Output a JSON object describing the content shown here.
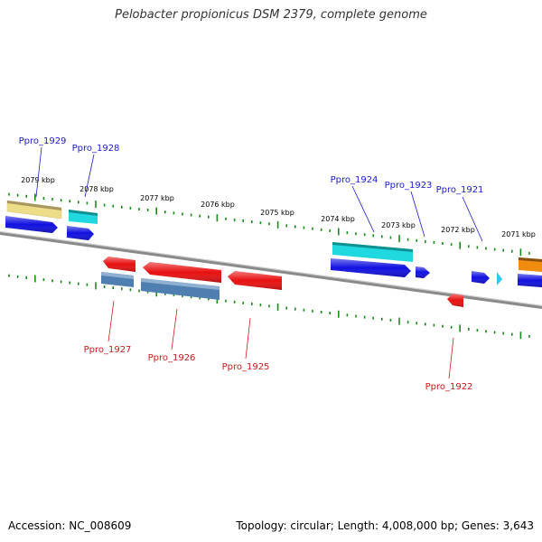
{
  "title": "Pelobacter propionicus DSM 2379, complete genome",
  "footer": {
    "accession": "Accession: NC_008609",
    "topology": "Topology: circular; Length: 4,008,000 bp; Genes: 3,643"
  },
  "colors": {
    "backbone": "#808080",
    "tick": "#1a8a1a",
    "forward_label": "#1a1acc",
    "reverse_label": "#cc1a1a",
    "blue": "#1010e0",
    "cyan": "#20d8e0",
    "red": "#e81010",
    "steel": "#4f7fb0",
    "khaki": "#f0e090",
    "orange": "#f08c10",
    "lightblue": "#30c8f0"
  },
  "scale_labels": [
    "2079 kbp",
    "2078 kbp",
    "2077 kbp",
    "2076 kbp",
    "2075 kbp",
    "2074 kbp",
    "2073 kbp",
    "2072 kbp",
    "2071 kbp"
  ],
  "genes": [
    {
      "id": "Ppro_1929",
      "strand": "forward",
      "color": "khaki",
      "label": "Ppro_1929"
    },
    {
      "id": "Ppro_1929_cds",
      "strand": "forward",
      "color": "blue",
      "label": ""
    },
    {
      "id": "Ppro_1928",
      "strand": "forward",
      "color": "cyan",
      "label": "Ppro_1928"
    },
    {
      "id": "Ppro_1928_cds",
      "strand": "forward",
      "color": "blue",
      "label": ""
    },
    {
      "id": "Ppro_1927",
      "strand": "reverse",
      "color": "red",
      "label": "Ppro_1927"
    },
    {
      "id": "Ppro_1927_cds",
      "strand": "reverse",
      "color": "steel",
      "label": ""
    },
    {
      "id": "Ppro_1926",
      "strand": "reverse",
      "color": "red",
      "label": "Ppro_1926"
    },
    {
      "id": "Ppro_1926_cds",
      "strand": "reverse",
      "color": "steel",
      "label": ""
    },
    {
      "id": "Ppro_1925",
      "strand": "reverse",
      "color": "red",
      "label": "Ppro_1925"
    },
    {
      "id": "Ppro_1924",
      "strand": "forward",
      "color": "cyan",
      "label": "Ppro_1924"
    },
    {
      "id": "Ppro_1924_cds",
      "strand": "forward",
      "color": "blue",
      "label": ""
    },
    {
      "id": "Ppro_1923",
      "strand": "forward",
      "color": "blue",
      "label": "Ppro_1923"
    },
    {
      "id": "Ppro_1922",
      "strand": "reverse",
      "color": "red",
      "label": "Ppro_1922"
    },
    {
      "id": "Ppro_1921",
      "strand": "forward",
      "color": "blue",
      "label": "Ppro_1921"
    },
    {
      "id": "Ppro_1921_tri",
      "strand": "forward",
      "color": "lightblue",
      "label": ""
    },
    {
      "id": "edge_orange",
      "strand": "forward",
      "color": "orange",
      "label": ""
    },
    {
      "id": "edge_blue",
      "strand": "forward",
      "color": "blue",
      "label": ""
    }
  ]
}
